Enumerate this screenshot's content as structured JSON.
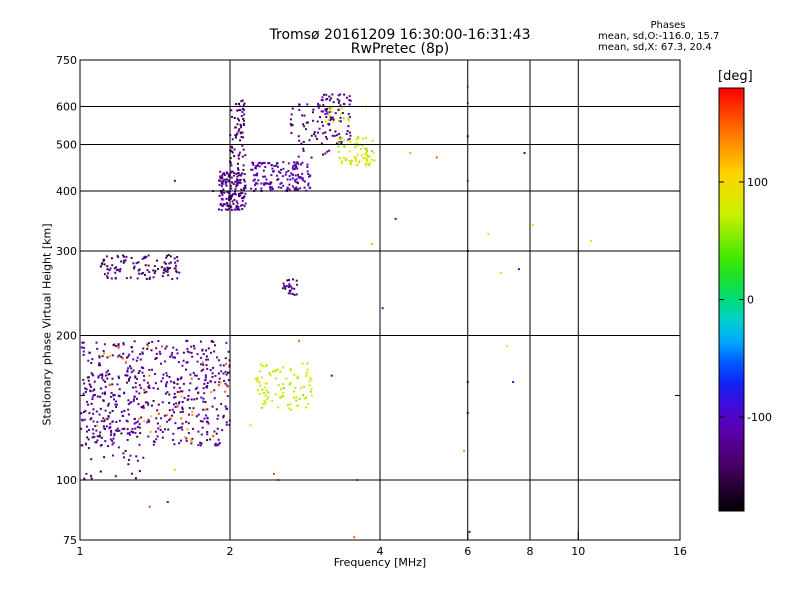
{
  "chart_data": {
    "type": "scatter",
    "title": "Tromsø 20161209 16:30:00-16:31:43",
    "subtitle": "RwPretec (8p)",
    "xlabel": "Frequency [MHz]",
    "ylabel": "Stationary phase Virtual Height [km]",
    "x_scale": "log",
    "y_scale": "log",
    "xlim": [
      1,
      16
    ],
    "ylim": [
      75,
      750
    ],
    "x_ticks": [
      1,
      2,
      4,
      6,
      8,
      10,
      16
    ],
    "x_tick_labels": [
      "1",
      "2",
      "4",
      "6",
      "8",
      "10",
      "16"
    ],
    "y_ticks": [
      75,
      100,
      200,
      300,
      400,
      500,
      600,
      750
    ],
    "y_tick_labels": [
      "75",
      "100",
      "200",
      "300",
      "400",
      "500",
      "600",
      "750"
    ],
    "y_minor_ticks": [
      150
    ],
    "grid": true,
    "colorbar": {
      "label": "[deg]",
      "ticks": [
        100,
        0,
        -100
      ],
      "tick_labels": [
        "100",
        "0",
        "-100"
      ],
      "range": [
        -180,
        180
      ]
    },
    "phases": {
      "title": "Phases",
      "line1": "mean, sd,O:-116.0, 15.7",
      "line2": "mean, sd,X:  67.3, 20.4"
    },
    "clusters": [
      {
        "xr": [
          1.0,
          2.0
        ],
        "yr": [
          118,
          195
        ],
        "n": 520,
        "phase": -125
      },
      {
        "xr": [
          1.02,
          1.35
        ],
        "yr": [
          100,
          175
        ],
        "n": 80,
        "phase": -130
      },
      {
        "xr": [
          1.1,
          1.6
        ],
        "yr": [
          262,
          295
        ],
        "n": 110,
        "phase": -135
      },
      {
        "xr": [
          1.9,
          2.15
        ],
        "yr": [
          365,
          440
        ],
        "n": 160,
        "phase": -125
      },
      {
        "xr": [
          2.0,
          2.15
        ],
        "yr": [
          440,
          620
        ],
        "n": 70,
        "phase": -135
      },
      {
        "xr": [
          2.2,
          2.9
        ],
        "yr": [
          400,
          460
        ],
        "n": 150,
        "phase": -115
      },
      {
        "xr": [
          2.6,
          3.2
        ],
        "yr": [
          460,
          610
        ],
        "n": 60,
        "phase": -130
      },
      {
        "xr": [
          3.0,
          3.5
        ],
        "yr": [
          500,
          640
        ],
        "n": 70,
        "phase": -125
      },
      {
        "xr": [
          2.55,
          2.75
        ],
        "yr": [
          243,
          262
        ],
        "n": 25,
        "phase": -130
      },
      {
        "xr": [
          3.3,
          3.9
        ],
        "yr": [
          450,
          520
        ],
        "n": 70,
        "phase": 80
      },
      {
        "xr": [
          3.1,
          3.5
        ],
        "yr": [
          550,
          600
        ],
        "n": 15,
        "phase": 75
      },
      {
        "xr": [
          2.25,
          2.95
        ],
        "yr": [
          140,
          175
        ],
        "n": 90,
        "phase": 75
      },
      {
        "xr": [
          1.03,
          2.0
        ],
        "yr": [
          120,
          190
        ],
        "n": 40,
        "phase": 140
      }
    ],
    "points": [
      {
        "x": 6.0,
        "y": 660,
        "phase": 140
      },
      {
        "x": 6.0,
        "y": 610,
        "phase": 150
      },
      {
        "x": 6.0,
        "y": 520,
        "phase": -110
      },
      {
        "x": 6.0,
        "y": 420,
        "phase": 150
      },
      {
        "x": 6.0,
        "y": 300,
        "phase": -120
      },
      {
        "x": 6.0,
        "y": 160,
        "phase": -130
      },
      {
        "x": 6.0,
        "y": 138,
        "phase": -115
      },
      {
        "x": 6.05,
        "y": 78,
        "phase": -100
      },
      {
        "x": 5.9,
        "y": 115,
        "phase": 130
      },
      {
        "x": 4.3,
        "y": 350,
        "phase": -110
      },
      {
        "x": 4.6,
        "y": 480,
        "phase": 55
      },
      {
        "x": 5.2,
        "y": 470,
        "phase": 150
      },
      {
        "x": 7.0,
        "y": 270,
        "phase": 90
      },
      {
        "x": 7.6,
        "y": 275,
        "phase": -110
      },
      {
        "x": 7.8,
        "y": 480,
        "phase": -120
      },
      {
        "x": 8.1,
        "y": 340,
        "phase": 95
      },
      {
        "x": 10.6,
        "y": 315,
        "phase": 100
      },
      {
        "x": 6.6,
        "y": 325,
        "phase": 100
      },
      {
        "x": 7.2,
        "y": 190,
        "phase": 100
      },
      {
        "x": 7.4,
        "y": 160,
        "phase": -110
      },
      {
        "x": 3.85,
        "y": 310,
        "phase": 120
      },
      {
        "x": 3.75,
        "y": 600,
        "phase": 60
      },
      {
        "x": 4.05,
        "y": 228,
        "phase": -100
      },
      {
        "x": 2.5,
        "y": 100,
        "phase": 150
      },
      {
        "x": 2.45,
        "y": 103,
        "phase": 160
      },
      {
        "x": 3.6,
        "y": 100,
        "phase": 150
      },
      {
        "x": 3.55,
        "y": 76,
        "phase": 150
      },
      {
        "x": 1.38,
        "y": 88,
        "phase": 160
      },
      {
        "x": 1.5,
        "y": 90,
        "phase": -110
      },
      {
        "x": 1.55,
        "y": 105,
        "phase": 110
      },
      {
        "x": 1.03,
        "y": 103,
        "phase": -110
      },
      {
        "x": 3.2,
        "y": 165,
        "phase": -120
      },
      {
        "x": 2.75,
        "y": 195,
        "phase": 150
      },
      {
        "x": 1.55,
        "y": 420,
        "phase": -115
      },
      {
        "x": 1.85,
        "y": 400,
        "phase": -110
      },
      {
        "x": 2.2,
        "y": 130,
        "phase": 70
      }
    ]
  }
}
